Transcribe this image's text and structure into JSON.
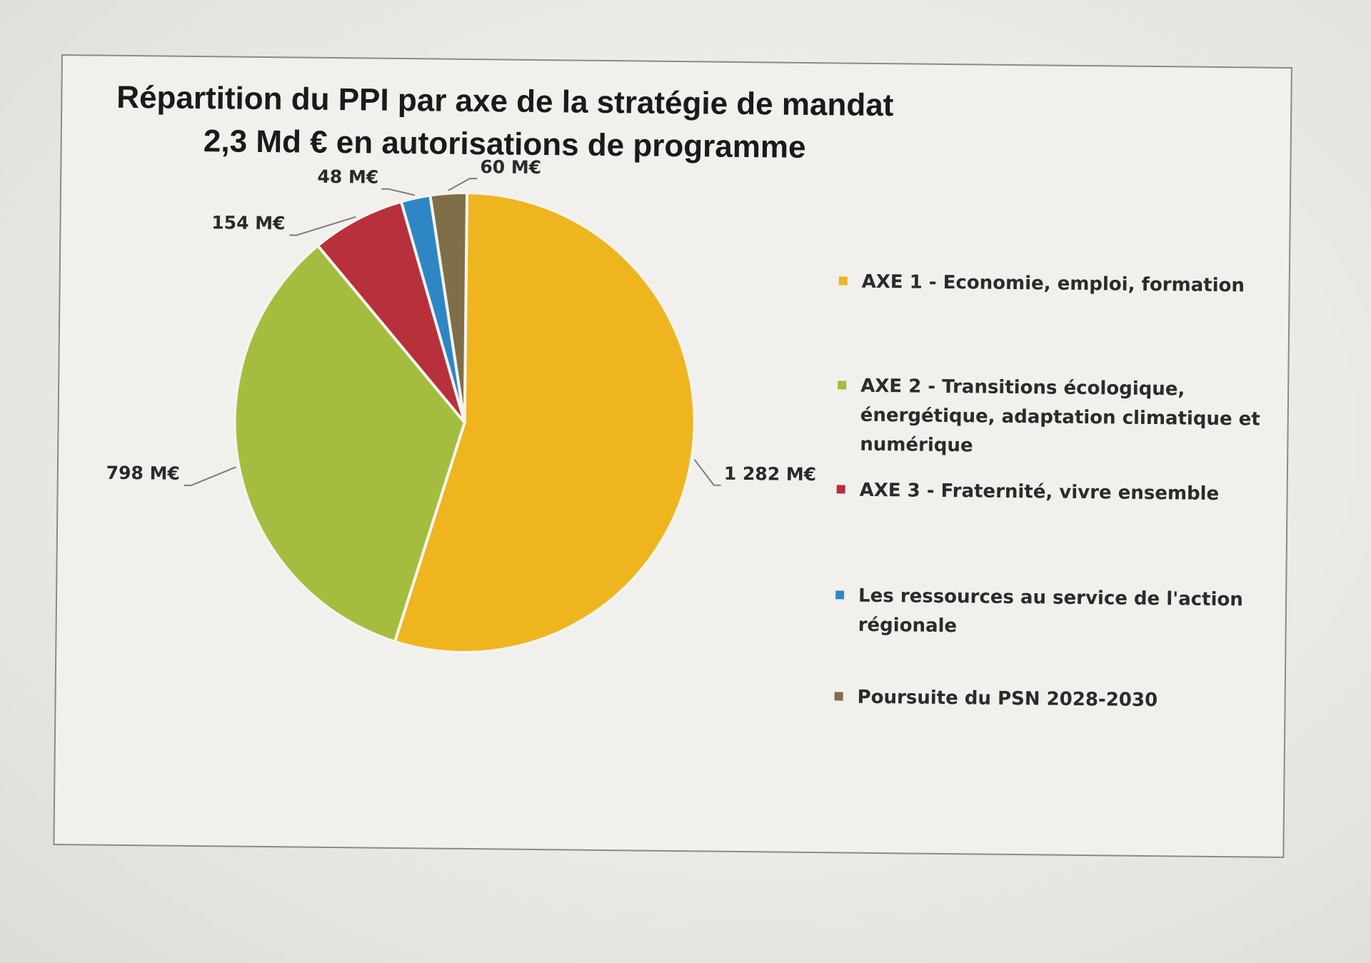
{
  "chart_data": {
    "type": "pie",
    "title": "Répartition du PPI par axe de la stratégie de mandat",
    "subtitle": "2,3 Md € en autorisations de programme",
    "unit": "M€",
    "slices": [
      {
        "name": "AXE 1 - Economie, emploi, formation",
        "value": 1282,
        "label": "1 282 M€",
        "color": "#efb51f"
      },
      {
        "name": "AXE 2 - Transitions écologique, énergétique, adaptation climatique et numérique",
        "value": 798,
        "label": "798 M€",
        "color": "#a4bd3e"
      },
      {
        "name": "AXE 3 - Fraternité, vivre ensemble",
        "value": 154,
        "label": "154 M€",
        "color": "#b8303c"
      },
      {
        "name": "Les ressources au service de l'action régionale",
        "value": 48,
        "label": "48 M€",
        "color": "#2e87c4"
      },
      {
        "name": "Poursuite du PSN 2028-2030",
        "value": 60,
        "label": "60 M€",
        "color": "#7f6e48"
      }
    ],
    "legend_position": "right"
  }
}
